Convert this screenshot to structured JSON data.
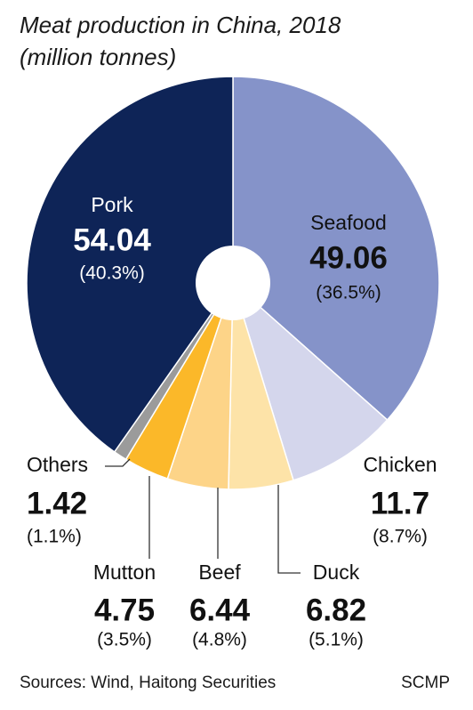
{
  "chart_data": {
    "type": "donut",
    "title": "Meat production in China, 2018",
    "subtitle": "(million tonnes)",
    "categories": [
      "Seafood",
      "Chicken",
      "Duck",
      "Beef",
      "Mutton",
      "Others",
      "Pork"
    ],
    "values": [
      49.06,
      11.7,
      6.82,
      6.44,
      4.75,
      1.42,
      54.04
    ],
    "percent_labels": [
      "(36.5%)",
      "(8.7%)",
      "(5.1%)",
      "(4.8%)",
      "(3.5%)",
      "(1.1%)",
      "(40.3%)"
    ],
    "colors": [
      "#8593c9",
      "#d4d6ec",
      "#fde3a8",
      "#fdd488",
      "#fbb829",
      "#9b9b9b",
      "#0e2457"
    ],
    "source": "Sources: Wind, Haitong Securities",
    "credit": "SCMP"
  }
}
